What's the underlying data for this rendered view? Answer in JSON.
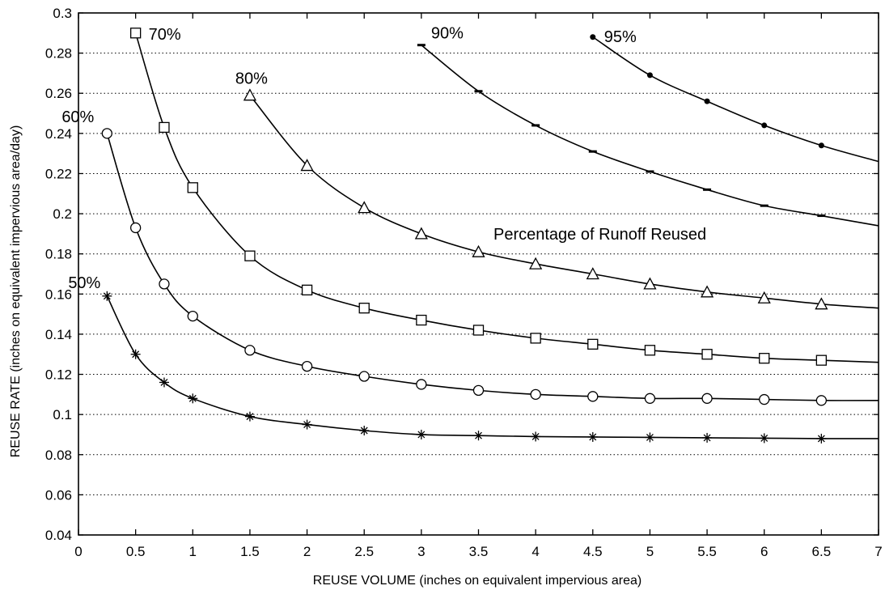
{
  "chart_data": {
    "type": "line",
    "title": "",
    "xlabel": "REUSE VOLUME (inches on equivalent impervious area)",
    "ylabel": "REUSE RATE (inches on equivalent impervious area/day)",
    "xlim": [
      0,
      7
    ],
    "ylim": [
      0.04,
      0.3
    ],
    "x_ticks": [
      "0",
      "0.5",
      "1",
      "1.5",
      "2",
      "2.5",
      "3",
      "3.5",
      "4",
      "4.5",
      "5",
      "5.5",
      "6",
      "6.5",
      "7"
    ],
    "y_ticks": [
      "0.04",
      "0.06",
      "0.08",
      "0.1",
      "0.12",
      "0.14",
      "0.16",
      "0.18",
      "0.2",
      "0.22",
      "0.24",
      "0.26",
      "0.28",
      "0.3"
    ],
    "grid": "horizontal dotted",
    "annotation": "Percentage of Runoff Reused",
    "series": [
      {
        "name": "50%",
        "marker": "asterisk",
        "x": [
          0.25,
          0.5,
          0.75,
          1,
          1.5,
          2,
          2.5,
          3,
          3.5,
          4,
          4.5,
          5,
          5.5,
          6,
          6.5,
          7
        ],
        "values": [
          0.159,
          0.13,
          0.116,
          0.108,
          0.099,
          0.095,
          0.092,
          0.09,
          0.0895,
          0.089,
          0.0888,
          0.0886,
          0.0884,
          0.0882,
          0.088,
          0.088
        ]
      },
      {
        "name": "60%",
        "marker": "circle",
        "x": [
          0.25,
          0.5,
          0.75,
          1,
          1.5,
          2,
          2.5,
          3,
          3.5,
          4,
          4.5,
          5,
          5.5,
          6,
          6.5,
          7
        ],
        "values": [
          0.24,
          0.193,
          0.165,
          0.149,
          0.132,
          0.124,
          0.119,
          0.115,
          0.112,
          0.11,
          0.109,
          0.108,
          0.108,
          0.1075,
          0.107,
          0.107
        ]
      },
      {
        "name": "70%",
        "marker": "square",
        "x": [
          0.5,
          0.75,
          1,
          1.5,
          2,
          2.5,
          3,
          3.5,
          4,
          4.5,
          5,
          5.5,
          6,
          6.5,
          7
        ],
        "values": [
          0.29,
          0.243,
          0.213,
          0.179,
          0.162,
          0.153,
          0.147,
          0.142,
          0.138,
          0.135,
          0.132,
          0.13,
          0.128,
          0.127,
          0.126
        ]
      },
      {
        "name": "80%",
        "marker": "triangle",
        "x": [
          1.5,
          2,
          2.5,
          3,
          3.5,
          4,
          4.5,
          5,
          5.5,
          6,
          6.5,
          7
        ],
        "values": [
          0.259,
          0.224,
          0.203,
          0.19,
          0.181,
          0.175,
          0.17,
          0.165,
          0.161,
          0.158,
          0.155,
          0.153
        ]
      },
      {
        "name": "90%",
        "marker": "dash",
        "x": [
          3,
          3.5,
          4,
          4.5,
          5,
          5.5,
          6,
          6.5,
          7
        ],
        "values": [
          0.284,
          0.261,
          0.244,
          0.231,
          0.221,
          0.212,
          0.204,
          0.199,
          0.194
        ]
      },
      {
        "name": "95%",
        "marker": "dot",
        "x": [
          4.5,
          5,
          5.5,
          6,
          6.5,
          7
        ],
        "values": [
          0.288,
          0.269,
          0.256,
          0.244,
          0.234,
          0.226
        ]
      }
    ]
  }
}
